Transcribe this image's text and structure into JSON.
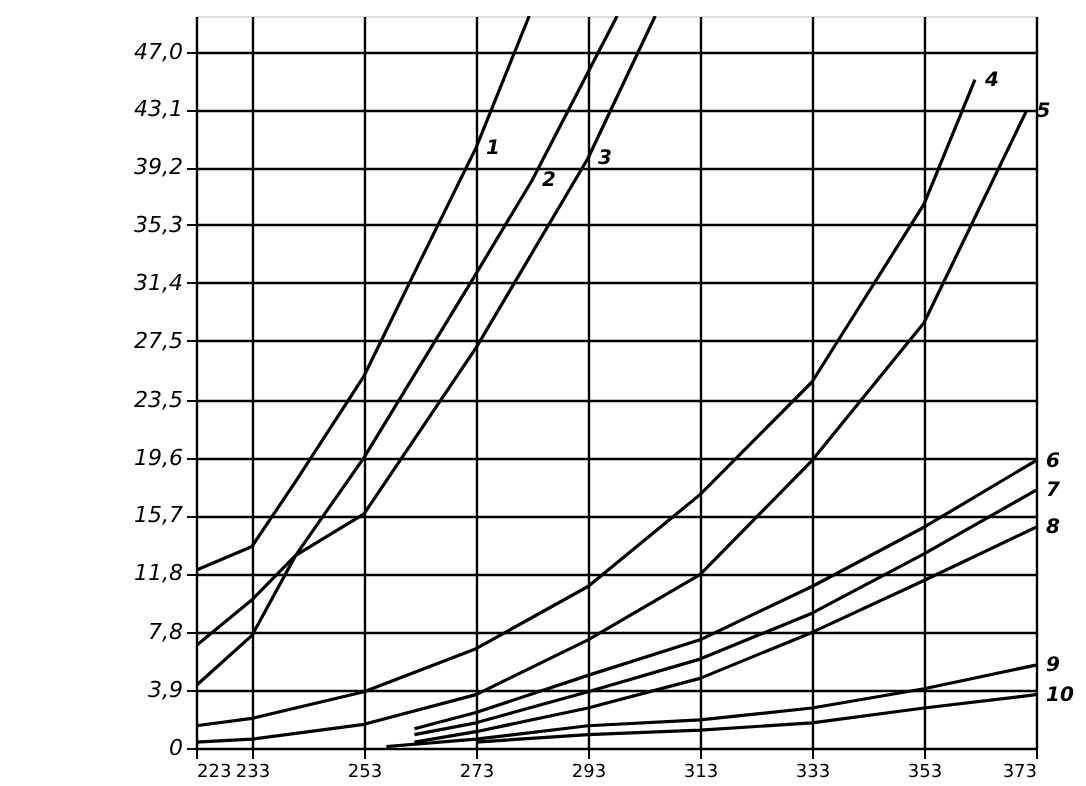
{
  "chart_data": {
    "type": "line",
    "xlim": [
      223,
      373
    ],
    "ylim": [
      0,
      49.4
    ],
    "xticks": [
      223,
      233,
      253,
      273,
      293,
      313,
      333,
      353,
      373
    ],
    "yticks": [
      0,
      {
        "value": 3.9,
        "label": "3,9"
      },
      {
        "value": 7.8,
        "label": "7,8"
      },
      {
        "value": 11.8,
        "label": "11,8"
      },
      {
        "value": 15.7,
        "label": "15,7"
      },
      {
        "value": 19.6,
        "label": "19,6"
      },
      {
        "value": 23.5,
        "label": "23,5"
      },
      {
        "value": 27.5,
        "label": "27,5"
      },
      {
        "value": 31.4,
        "label": "31,4"
      },
      {
        "value": 35.3,
        "label": "35,3"
      },
      {
        "value": 39.2,
        "label": "39,2"
      },
      {
        "value": 43.1,
        "label": "43,1"
      },
      {
        "value": 47.0,
        "label": "47,0"
      }
    ],
    "grid": true,
    "line_style": "solid",
    "series": [
      {
        "name": "1",
        "color": "#000000",
        "x": [
          223,
          233,
          240.8,
          253,
          262.3,
          273,
          282.5
        ],
        "values": [
          12.0,
          13.6,
          18.0,
          25.1,
          32.3,
          40.5,
          49.4
        ]
      },
      {
        "name": "2",
        "color": "#000000",
        "x": [
          223,
          233,
          240.8,
          253,
          273,
          283,
          298.2
        ],
        "values": [
          6.9,
          10.0,
          13.0,
          19.6,
          32.0,
          38.3,
          49.4
        ]
      },
      {
        "name": "3",
        "color": "#000000",
        "x": [
          223,
          233,
          240.8,
          253,
          273,
          293,
          305
        ],
        "values": [
          4.2,
          7.6,
          13.0,
          15.8,
          27.0,
          39.8,
          49.4
        ]
      },
      {
        "name": "4",
        "color": "#000000",
        "x": [
          223,
          233,
          253,
          273,
          293,
          313,
          333,
          353,
          362.1
        ],
        "values": [
          1.5,
          2.0,
          3.8,
          6.7,
          10.9,
          17.1,
          24.7,
          36.7,
          45.1
        ]
      },
      {
        "name": "5",
        "color": "#000000",
        "x": [
          223,
          233,
          253,
          273,
          293,
          313,
          333,
          353,
          371.3
        ],
        "values": [
          0.4,
          0.6,
          1.6,
          3.6,
          7.3,
          11.7,
          19.4,
          28.7,
          43.0
        ]
      },
      {
        "name": "6",
        "color": "#000000",
        "x": [
          262,
          273,
          293,
          313,
          333,
          353,
          373
        ],
        "values": [
          1.3,
          2.4,
          4.9,
          7.3,
          10.9,
          14.9,
          19.4
        ]
      },
      {
        "name": "7",
        "color": "#000000",
        "x": [
          262,
          273,
          293,
          313,
          333,
          353,
          373
        ],
        "values": [
          0.9,
          1.7,
          3.8,
          6.0,
          9.1,
          13.1,
          17.4
        ]
      },
      {
        "name": "8",
        "color": "#000000",
        "x": [
          262,
          273,
          293,
          313,
          333,
          353,
          373
        ],
        "values": [
          0.4,
          1.1,
          2.7,
          4.7,
          7.8,
          11.3,
          14.9
        ]
      },
      {
        "name": "9",
        "color": "#000000",
        "x": [
          257,
          273,
          293,
          313,
          333,
          353,
          373
        ],
        "values": [
          0.1,
          0.6,
          1.5,
          1.9,
          2.7,
          4.0,
          5.6
        ]
      },
      {
        "name": "10",
        "color": "#000000",
        "x": [
          273,
          293,
          313,
          333,
          353,
          373
        ],
        "values": [
          0.4,
          0.9,
          1.2,
          1.7,
          2.7,
          3.6
        ]
      }
    ],
    "legend": false
  }
}
